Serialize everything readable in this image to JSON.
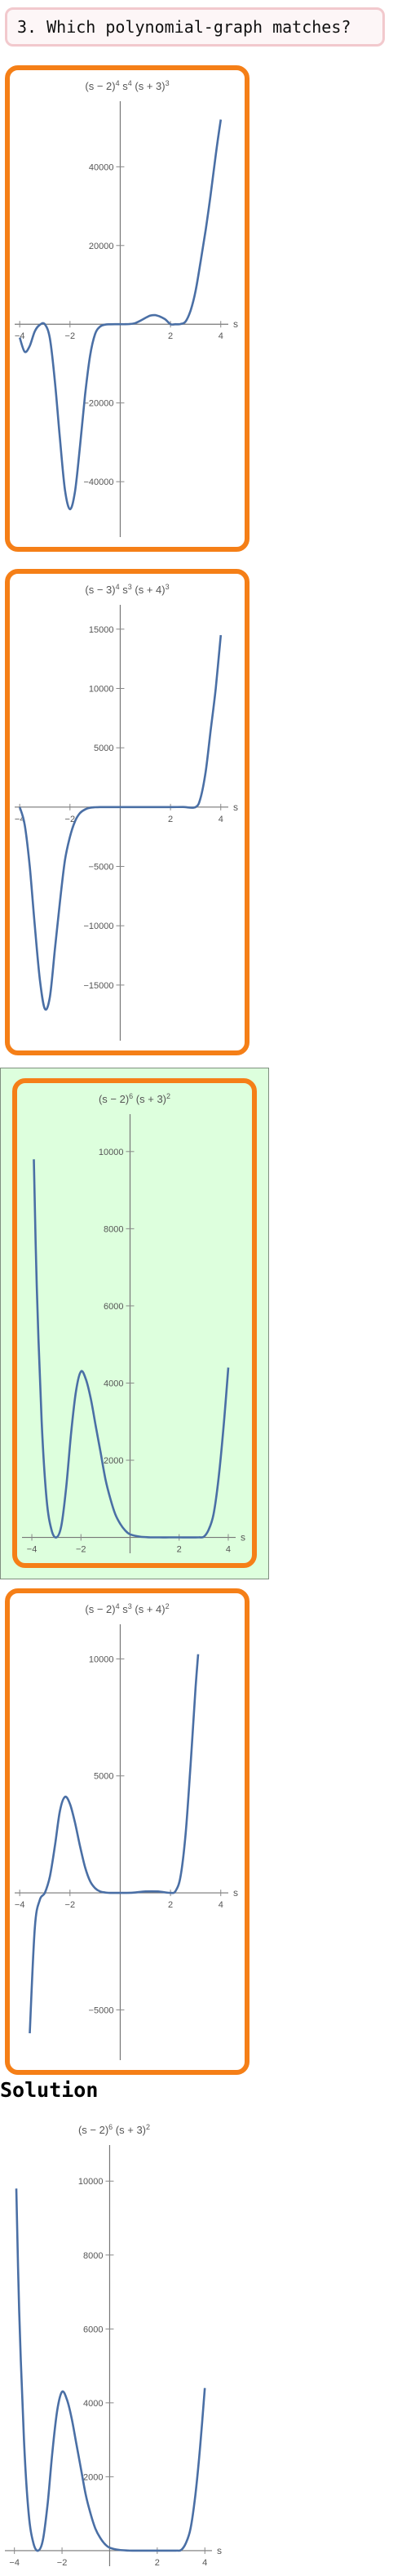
{
  "question": {
    "text": "3. Which polynomial-graph matches?"
  },
  "solution": {
    "heading": "Solution"
  },
  "colors": {
    "curve": "#4a6fa5",
    "option_border": "#f57f17",
    "correct_background": "#ddffdd"
  },
  "chart_data": [
    {
      "id": "option-1",
      "type": "line",
      "title": "(s − 2)⁴ s⁴ (s + 3)³",
      "title_parts": [
        "(s − 2)",
        "4",
        " s",
        "4",
        " (s + 3)",
        "3"
      ],
      "xlabel": "s",
      "xlim": [
        -4.2,
        4.3
      ],
      "ylim": [
        -52000,
        55000
      ],
      "xticks": [
        -4,
        -2,
        2,
        4
      ],
      "yticks": [
        -40000,
        -20000,
        20000,
        40000
      ],
      "ytick_labels": [
        "−40000",
        "−20000",
        "20000",
        "40000"
      ],
      "series": [
        {
          "x": [
            -4,
            -3.8,
            -3.6,
            -3.4,
            -3.2,
            -3,
            -2.8,
            -2.6,
            -2.4,
            -2.2,
            -2,
            -1.8,
            -1.6,
            -1.4,
            -1.2,
            -1,
            -0.8,
            -0.6,
            -0.4,
            -0.2,
            0,
            0.2,
            0.4,
            0.6,
            0.8,
            1,
            1.2,
            1.4,
            1.6,
            1.8,
            2,
            2.2,
            2.4,
            2.6,
            2.8,
            3,
            3.2,
            3.4,
            3.6,
            3.8,
            4
          ],
          "y": [
            -3400,
            -7000,
            -5500,
            -1800,
            -150,
            0,
            -3600,
            -14500,
            -29000,
            -42000,
            -47000,
            -42500,
            -31000,
            -18000,
            -8000,
            -2500,
            -600,
            -100,
            -10,
            0,
            0,
            5,
            60,
            300,
            900,
            1600,
            2200,
            2300,
            1900,
            1200,
            0,
            0,
            50,
            700,
            3500,
            8500,
            16000,
            24000,
            33000,
            43000,
            52000
          ]
        }
      ]
    },
    {
      "id": "option-2",
      "type": "line",
      "title": "(s − 3)⁴ s³ (s + 4)³",
      "title_parts": [
        "(s − 3)",
        "4",
        " s",
        "3",
        " (s + 4)",
        "3"
      ],
      "xlabel": "s",
      "xlim": [
        -4.2,
        4.3
      ],
      "ylim": [
        -19000,
        16500
      ],
      "xticks": [
        -4,
        -2,
        2,
        4
      ],
      "yticks": [
        -15000,
        -10000,
        -5000,
        5000,
        10000,
        15000
      ],
      "ytick_labels": [
        "−15000",
        "−10000",
        "−5000",
        "5000",
        "10000",
        "15000"
      ],
      "series": [
        {
          "x": [
            -4,
            -3.8,
            -3.6,
            -3.4,
            -3.2,
            -3,
            -2.8,
            -2.6,
            -2.4,
            -2.2,
            -2,
            -1.8,
            -1.6,
            -1.4,
            -1.2,
            -1,
            -0.8,
            -0.6,
            -0.4,
            -0.2,
            0,
            0.5,
            1,
            1.5,
            2,
            2.5,
            3,
            3.2,
            3.4,
            3.6,
            3.8,
            4
          ],
          "y": [
            0,
            -1500,
            -5000,
            -10000,
            -14500,
            -17000,
            -16000,
            -12000,
            -8000,
            -4500,
            -2500,
            -1200,
            -500,
            -200,
            -50,
            -10,
            0,
            0,
            0,
            0,
            0,
            0,
            0,
            0,
            0,
            10,
            0,
            800,
            3000,
            6500,
            10000,
            14500
          ]
        }
      ]
    },
    {
      "id": "option-3",
      "type": "line",
      "title": "(s − 2)⁶ (s + 3)²",
      "title_parts": [
        "(s − 2)",
        "6",
        " (s + 3)",
        "2"
      ],
      "xlabel": "s",
      "xlim": [
        -4.4,
        4.3
      ],
      "ylim": [
        -200,
        10800
      ],
      "xticks": [
        -4,
        -2,
        2,
        4
      ],
      "yticks": [
        2000,
        4000,
        6000,
        8000,
        10000
      ],
      "ytick_labels": [
        "2000",
        "4000",
        "6000",
        "8000",
        "10000"
      ],
      "series": [
        {
          "x": [
            -3.92,
            -3.8,
            -3.6,
            -3.4,
            -3.2,
            -3,
            -2.8,
            -2.6,
            -2.4,
            -2.2,
            -2,
            -1.8,
            -1.6,
            -1.4,
            -1.2,
            -1,
            -0.8,
            -0.6,
            -0.4,
            -0.2,
            0,
            0.4,
            0.8,
            1.2,
            1.6,
            2,
            2.4,
            2.8,
            3,
            3.2,
            3.4,
            3.6,
            3.8,
            4
          ],
          "y": [
            9800,
            6500,
            3000,
            1000,
            200,
            0,
            300,
            1300,
            2700,
            3800,
            4300,
            4100,
            3600,
            2900,
            2200,
            1500,
            1000,
            600,
            350,
            180,
            80,
            20,
            4,
            0.5,
            0,
            0,
            0,
            2,
            16,
            200,
            600,
            1500,
            2800,
            4400
          ]
        }
      ]
    },
    {
      "id": "option-4",
      "type": "line",
      "title": "(s − 2)⁴ s³ (s + 4)²",
      "title_parts": [
        "(s − 2)",
        "4",
        " s",
        "3",
        " (s + 4)",
        "2"
      ],
      "xlabel": "s",
      "xlim": [
        -4.2,
        4.3
      ],
      "ylim": [
        -6800,
        11200
      ],
      "xticks": [
        -4,
        -2,
        2,
        4
      ],
      "yticks": [
        -5000,
        5000,
        10000
      ],
      "ytick_labels": [
        "−5000",
        "5000",
        "10000"
      ],
      "series": [
        {
          "x": [
            -3.6,
            -3.4,
            -3.2,
            -3,
            -2.8,
            -2.6,
            -2.4,
            -2.2,
            -2,
            -1.8,
            -1.6,
            -1.4,
            -1.2,
            -1,
            -0.8,
            -0.6,
            -0.4,
            -0.2,
            0,
            0.5,
            1,
            1.5,
            2,
            2.2,
            2.4,
            2.6,
            2.8,
            3,
            3.1
          ],
          "y": [
            -6000,
            -1500,
            -300,
            0,
            700,
            2000,
            3500,
            4100,
            3800,
            3000,
            2000,
            1100,
            500,
            200,
            60,
            15,
            0,
            0,
            0,
            10,
            60,
            60,
            0,
            80,
            700,
            2500,
            5500,
            8800,
            10200
          ]
        }
      ]
    },
    {
      "id": "solution",
      "type": "line",
      "title": "(s − 2)⁶ (s + 3)²",
      "title_parts": [
        "(s − 2)",
        "6",
        " (s + 3)",
        "2"
      ],
      "xlabel": "s",
      "xlim": [
        -4.4,
        4.3
      ],
      "ylim": [
        -200,
        10800
      ],
      "xticks": [
        -4,
        -2,
        2,
        4
      ],
      "yticks": [
        2000,
        4000,
        6000,
        8000,
        10000
      ],
      "ytick_labels": [
        "2000",
        "4000",
        "6000",
        "8000",
        "10000"
      ],
      "series": [
        {
          "x": [
            -3.92,
            -3.8,
            -3.6,
            -3.4,
            -3.2,
            -3,
            -2.8,
            -2.6,
            -2.4,
            -2.2,
            -2,
            -1.8,
            -1.6,
            -1.4,
            -1.2,
            -1,
            -0.8,
            -0.6,
            -0.4,
            -0.2,
            0,
            0.4,
            0.8,
            1.2,
            1.6,
            2,
            2.4,
            2.8,
            3,
            3.2,
            3.4,
            3.6,
            3.8,
            4
          ],
          "y": [
            9800,
            6500,
            3000,
            1000,
            200,
            0,
            300,
            1300,
            2700,
            3800,
            4300,
            4100,
            3600,
            2900,
            2200,
            1500,
            1000,
            600,
            350,
            180,
            80,
            20,
            4,
            0.5,
            0,
            0,
            0,
            2,
            16,
            200,
            600,
            1500,
            2800,
            4400
          ]
        }
      ]
    }
  ]
}
